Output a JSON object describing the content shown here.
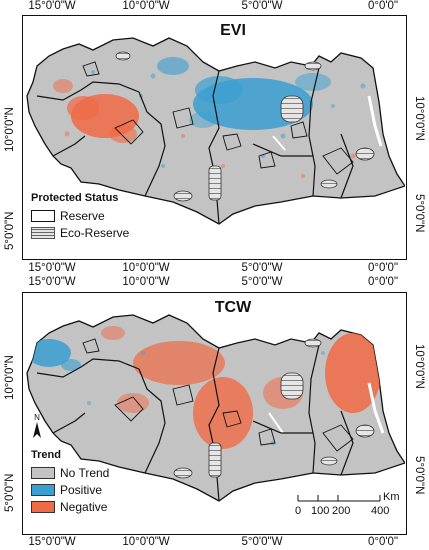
{
  "longitude_labels": [
    "15°0'0\"W",
    "10°0'0\"W",
    "5°0'0\"W",
    "0°0'0\""
  ],
  "latitude_labels": [
    "10°0'0\"N",
    "5°0'0\"N"
  ],
  "panels": [
    {
      "title": "EVI",
      "legend": {
        "title": "Protected Status",
        "items": [
          {
            "label": "Reserve",
            "style": "outline"
          },
          {
            "label": "Eco-Reserve",
            "style": "hatched"
          }
        ]
      }
    },
    {
      "title": "TCW",
      "north_arrow": "N",
      "legend": {
        "title": "Trend",
        "items": [
          {
            "label": "No Trend",
            "color": "#c3c3c3"
          },
          {
            "label": "Positive",
            "color": "#3a9fd1"
          },
          {
            "label": "Negative",
            "color": "#f06a45"
          }
        ]
      },
      "scale_bar": {
        "unit": "Km",
        "ticks": [
          "0",
          "100",
          "200",
          "400"
        ]
      }
    }
  ],
  "colors": {
    "no_trend": "#c3c3c3",
    "positive": "#3a9fd1",
    "negative": "#f06a45",
    "boundary": "#111111"
  }
}
